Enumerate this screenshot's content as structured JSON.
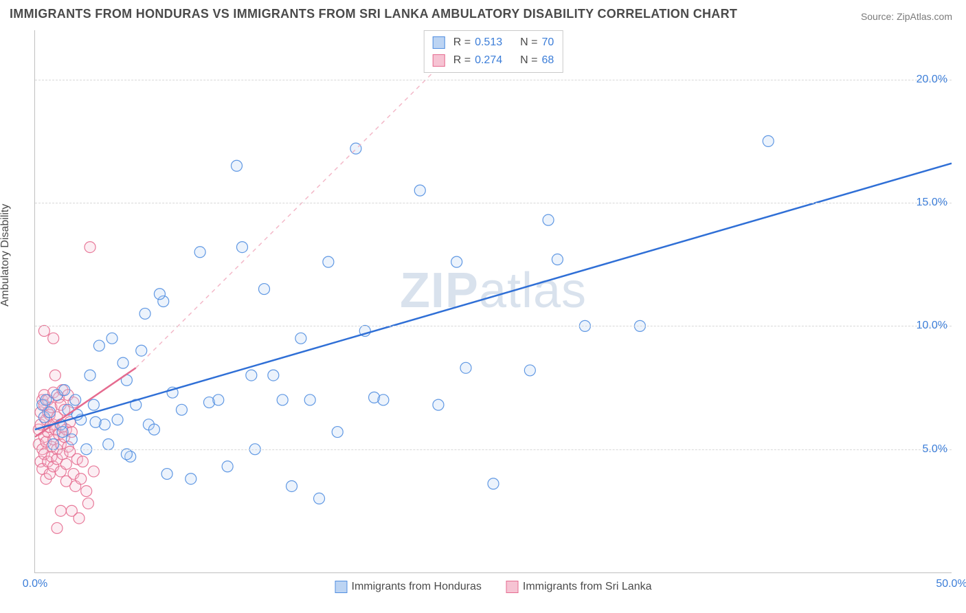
{
  "title": "IMMIGRANTS FROM HONDURAS VS IMMIGRANTS FROM SRI LANKA AMBULATORY DISABILITY CORRELATION CHART",
  "source": "Source: ZipAtlas.com",
  "y_axis_label": "Ambulatory Disability",
  "watermark_a": "ZIP",
  "watermark_b": "atlas",
  "chart": {
    "type": "scatter",
    "xlim": [
      0,
      50
    ],
    "ylim": [
      0,
      22
    ],
    "x_ticks": [
      {
        "v": 0,
        "label": "0.0%"
      },
      {
        "v": 50,
        "label": "50.0%"
      }
    ],
    "y_ticks": [
      {
        "v": 5,
        "label": "5.0%"
      },
      {
        "v": 10,
        "label": "10.0%"
      },
      {
        "v": 15,
        "label": "15.0%"
      },
      {
        "v": 20,
        "label": "20.0%"
      }
    ],
    "grid_color": "#d7d7d7",
    "background_color": "#ffffff",
    "axis_color": "#bfbfbf",
    "tick_label_color": "#3b7dd8",
    "axis_label_color": "#4a4a4a",
    "title_color": "#4a4a4a",
    "title_fontsize": 18,
    "tick_fontsize": 16,
    "marker_radius": 8,
    "marker_fill_opacity": 0.28,
    "marker_stroke_opacity": 0.9,
    "series": [
      {
        "name": "Immigrants from Honduras",
        "color": "#4f8de0",
        "fill": "#bcd4f3",
        "R": "0.513",
        "N": "70",
        "trend": {
          "x1": 0,
          "y1": 5.8,
          "x2": 50,
          "y2": 16.6,
          "dash": false,
          "width": 2.5,
          "color": "#2f6fd6"
        },
        "points": [
          [
            0.4,
            6.8
          ],
          [
            0.5,
            6.3
          ],
          [
            0.6,
            7.0
          ],
          [
            0.8,
            6.5
          ],
          [
            1.0,
            5.2
          ],
          [
            1.2,
            7.2
          ],
          [
            1.4,
            6.0
          ],
          [
            1.6,
            7.4
          ],
          [
            1.8,
            6.6
          ],
          [
            2.0,
            5.4
          ],
          [
            2.2,
            7.0
          ],
          [
            2.5,
            6.2
          ],
          [
            2.8,
            5.0
          ],
          [
            3.0,
            8.0
          ],
          [
            3.2,
            6.8
          ],
          [
            3.5,
            9.2
          ],
          [
            3.8,
            6.0
          ],
          [
            4.0,
            5.2
          ],
          [
            4.2,
            9.5
          ],
          [
            4.5,
            6.2
          ],
          [
            5.0,
            7.8
          ],
          [
            5.2,
            4.7
          ],
          [
            5.5,
            6.8
          ],
          [
            5.8,
            9.0
          ],
          [
            6.0,
            10.5
          ],
          [
            6.2,
            6.0
          ],
          [
            6.5,
            5.8
          ],
          [
            7.0,
            11.0
          ],
          [
            7.2,
            4.0
          ],
          [
            7.5,
            7.3
          ],
          [
            8.0,
            6.6
          ],
          [
            8.5,
            3.8
          ],
          [
            9.0,
            13.0
          ],
          [
            9.5,
            6.9
          ],
          [
            10.0,
            7.0
          ],
          [
            10.5,
            4.3
          ],
          [
            11.0,
            16.5
          ],
          [
            11.3,
            13.2
          ],
          [
            11.8,
            8.0
          ],
          [
            12.0,
            5.0
          ],
          [
            12.5,
            11.5
          ],
          [
            13.0,
            8.0
          ],
          [
            13.5,
            7.0
          ],
          [
            14.0,
            3.5
          ],
          [
            14.5,
            9.5
          ],
          [
            15.0,
            7.0
          ],
          [
            15.5,
            3.0
          ],
          [
            16.0,
            12.6
          ],
          [
            16.5,
            5.7
          ],
          [
            17.5,
            17.2
          ],
          [
            18.0,
            9.8
          ],
          [
            18.5,
            7.1
          ],
          [
            19.0,
            7.0
          ],
          [
            21.0,
            15.5
          ],
          [
            22.0,
            6.8
          ],
          [
            23.0,
            12.6
          ],
          [
            23.5,
            8.3
          ],
          [
            25.0,
            3.6
          ],
          [
            27.0,
            8.2
          ],
          [
            28.0,
            14.3
          ],
          [
            28.5,
            12.7
          ],
          [
            30.0,
            10.0
          ],
          [
            33.0,
            10.0
          ],
          [
            40.0,
            17.5
          ],
          [
            1.5,
            5.7
          ],
          [
            2.3,
            6.4
          ],
          [
            3.3,
            6.1
          ],
          [
            4.8,
            8.5
          ],
          [
            6.8,
            11.3
          ],
          [
            5.0,
            4.8
          ]
        ]
      },
      {
        "name": "Immigrants from Sri Lanka",
        "color": "#e56b8f",
        "fill": "#f6c3d3",
        "R": "0.274",
        "N": "68",
        "trend_solid": {
          "x1": 0,
          "y1": 5.5,
          "x2": 5.5,
          "y2": 8.3,
          "dash": false,
          "width": 2.5,
          "color": "#e56b8f"
        },
        "trend_dashed": {
          "x1": 5.5,
          "y1": 8.3,
          "x2": 22,
          "y2": 20.5,
          "dash": true,
          "width": 1.5,
          "color": "#f3b8c8"
        },
        "points": [
          [
            0.2,
            5.2
          ],
          [
            0.2,
            5.8
          ],
          [
            0.3,
            4.5
          ],
          [
            0.3,
            6.0
          ],
          [
            0.3,
            6.5
          ],
          [
            0.4,
            5.0
          ],
          [
            0.4,
            7.0
          ],
          [
            0.4,
            4.2
          ],
          [
            0.5,
            5.5
          ],
          [
            0.5,
            6.8
          ],
          [
            0.5,
            4.8
          ],
          [
            0.5,
            7.2
          ],
          [
            0.6,
            5.3
          ],
          [
            0.6,
            6.2
          ],
          [
            0.6,
            3.8
          ],
          [
            0.7,
            5.7
          ],
          [
            0.7,
            6.5
          ],
          [
            0.7,
            4.5
          ],
          [
            0.7,
            7.0
          ],
          [
            0.8,
            5.9
          ],
          [
            0.8,
            4.0
          ],
          [
            0.8,
            6.4
          ],
          [
            0.9,
            5.1
          ],
          [
            0.9,
            6.7
          ],
          [
            0.9,
            4.7
          ],
          [
            1.0,
            5.4
          ],
          [
            1.0,
            6.0
          ],
          [
            1.0,
            7.3
          ],
          [
            1.0,
            4.3
          ],
          [
            1.1,
            5.8
          ],
          [
            1.1,
            8.0
          ],
          [
            1.2,
            5.0
          ],
          [
            1.2,
            6.3
          ],
          [
            1.2,
            4.6
          ],
          [
            1.3,
            5.6
          ],
          [
            1.3,
            7.1
          ],
          [
            1.4,
            5.2
          ],
          [
            1.4,
            6.8
          ],
          [
            1.4,
            4.1
          ],
          [
            1.5,
            5.9
          ],
          [
            1.5,
            7.4
          ],
          [
            1.5,
            4.8
          ],
          [
            1.6,
            5.5
          ],
          [
            1.6,
            6.6
          ],
          [
            1.7,
            4.4
          ],
          [
            1.7,
            5.8
          ],
          [
            1.8,
            7.2
          ],
          [
            1.8,
            5.1
          ],
          [
            1.9,
            6.1
          ],
          [
            1.9,
            4.9
          ],
          [
            2.0,
            5.7
          ],
          [
            2.0,
            2.5
          ],
          [
            2.1,
            4.0
          ],
          [
            2.2,
            3.5
          ],
          [
            2.3,
            4.6
          ],
          [
            2.4,
            2.2
          ],
          [
            2.5,
            3.8
          ],
          [
            2.6,
            4.5
          ],
          [
            3.0,
            13.2
          ],
          [
            2.8,
            3.3
          ],
          [
            1.0,
            9.5
          ],
          [
            1.2,
            1.8
          ],
          [
            1.4,
            2.5
          ],
          [
            0.5,
            9.8
          ],
          [
            3.2,
            4.1
          ],
          [
            2.9,
            2.8
          ],
          [
            2.1,
            6.9
          ],
          [
            1.7,
            3.7
          ]
        ]
      }
    ],
    "legend_top_labels": {
      "R": "R =",
      "N": "N ="
    },
    "legend_bottom": [
      {
        "label": "Immigrants from Honduras",
        "swatch_fill": "#bcd4f3",
        "swatch_border": "#4f8de0"
      },
      {
        "label": "Immigrants from Sri Lanka",
        "swatch_fill": "#f6c3d3",
        "swatch_border": "#e56b8f"
      }
    ]
  }
}
